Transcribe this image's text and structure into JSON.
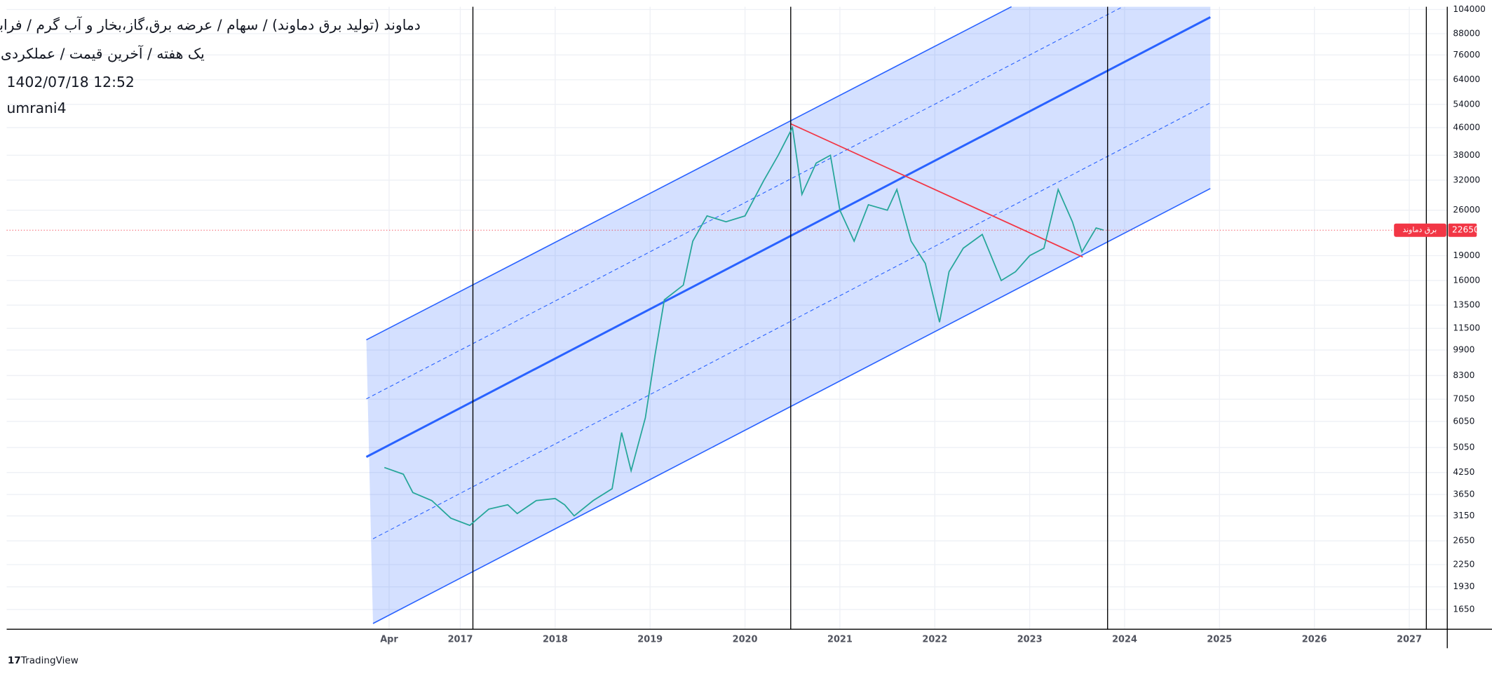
{
  "chart_data": {
    "type": "line",
    "title": "دماوند (تولید برق دماوند) / سهام / عرضه برق،گاز،بخار و آب گرم / فرابورس",
    "subtitle": "یک هفته / آخرین قیمت / عملکردی",
    "timestamp": "1402/07/18 12:52",
    "author": "umrani4",
    "brand": "TradingView",
    "x": [
      2016.2,
      2016.4,
      2016.5,
      2016.7,
      2016.9,
      2017.1,
      2017.3,
      2017.5,
      2017.6,
      2017.8,
      2018.0,
      2018.1,
      2018.2,
      2018.4,
      2018.6,
      2018.7,
      2018.8,
      2018.95,
      2019.05,
      2019.15,
      2019.35,
      2019.45,
      2019.6,
      2019.8,
      2020.0,
      2020.2,
      2020.35,
      2020.5,
      2020.6,
      2020.75,
      2020.9,
      2021.0,
      2021.15,
      2021.3,
      2021.5,
      2021.6,
      2021.75,
      2021.9,
      2022.05,
      2022.15,
      2022.3,
      2022.5,
      2022.7,
      2022.85,
      2023.0,
      2023.15,
      2023.3,
      2023.45,
      2023.55,
      2023.7,
      2023.78
    ],
    "series": [
      {
        "name": "برق دماوند",
        "color": "#26a69a",
        "values": [
          4400,
          4200,
          3700,
          3500,
          3100,
          2950,
          3300,
          3400,
          3200,
          3500,
          3550,
          3400,
          3150,
          3500,
          3800,
          5600,
          4300,
          6200,
          9500,
          14000,
          15500,
          21000,
          25000,
          24000,
          25000,
          32000,
          38000,
          46000,
          29000,
          36000,
          38000,
          26000,
          21000,
          27000,
          26000,
          30000,
          21000,
          18000,
          12000,
          17000,
          20000,
          22000,
          16000,
          17000,
          19000,
          20000,
          30000,
          24000,
          19500,
          23000,
          22650
        ]
      }
    ],
    "last_price": 22650,
    "last_price_color": "#f23645",
    "xlim": [
      2012.22,
      2027.39
    ],
    "xticks": [
      {
        "value": 2016.25,
        "label": "Apr"
      },
      2017,
      2018,
      2019,
      2020,
      2021,
      2022,
      2023,
      2024,
      2025,
      2026,
      2027
    ],
    "ylim": [
      1440,
      106000
    ],
    "yticks": [
      104000,
      88000,
      76000,
      64000,
      54000,
      46000,
      38000,
      32000,
      26000,
      19000,
      16000,
      13500,
      11500,
      9900,
      8300,
      7050,
      6050,
      5050,
      4250,
      3650,
      3150,
      2650,
      2250,
      1930,
      1650
    ],
    "log_scale": true,
    "grid": true
  }
}
